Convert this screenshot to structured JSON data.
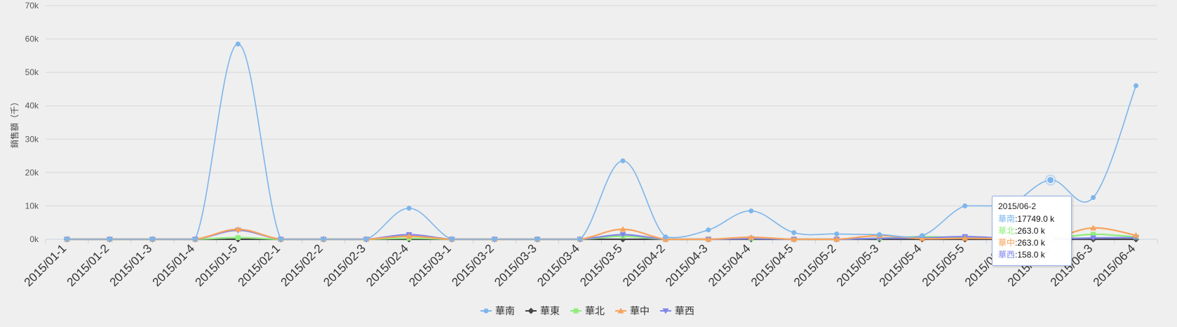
{
  "chart_data": {
    "type": "line",
    "title": "",
    "xlabel": "",
    "ylabel": "銷售額（千）",
    "ylim": [
      0,
      70000
    ],
    "yticks": [
      0,
      10000,
      20000,
      30000,
      40000,
      50000,
      60000,
      70000
    ],
    "ytick_labels": [
      "0k",
      "10k",
      "20k",
      "30k",
      "40k",
      "50k",
      "60k",
      "70k"
    ],
    "grid": "horizontal",
    "legend_position": "bottom-center",
    "categories": [
      "2015/01-1",
      "2015/01-2",
      "2015/01-3",
      "2015/01-4",
      "2015/01-5",
      "2015/02-1",
      "2015/02-2",
      "2015/02-3",
      "2015/02-4",
      "2015/03-1",
      "2015/03-2",
      "2015/03-3",
      "2015/03-4",
      "2015/03-5",
      "2015/04-2",
      "2015/04-3",
      "2015/04-4",
      "2015/04-5",
      "2015/05-2",
      "2015/05-3",
      "2015/05-4",
      "2015/05-5",
      "2015/06-1",
      "2015/06-2",
      "2015/06-3",
      "2015/06-4"
    ],
    "series": [
      {
        "name": "華南",
        "color": "#7cb5ec",
        "marker": "circle",
        "values": [
          0,
          0,
          0,
          0,
          58500,
          0,
          0,
          0,
          9300,
          0,
          0,
          0,
          0,
          23500,
          700,
          2800,
          8500,
          2000,
          1600,
          1400,
          1100,
          10000,
          10000,
          17749,
          12500,
          46000
        ]
      },
      {
        "name": "華東",
        "color": "#434348",
        "marker": "diamond",
        "values": [
          0,
          0,
          0,
          0,
          0,
          0,
          0,
          0,
          0,
          0,
          0,
          0,
          0,
          0,
          0,
          0,
          0,
          0,
          0,
          0,
          0,
          0,
          0,
          0,
          0,
          0
        ]
      },
      {
        "name": "華北",
        "color": "#90ed7d",
        "marker": "square",
        "values": [
          0,
          0,
          0,
          0,
          500,
          0,
          0,
          0,
          300,
          0,
          0,
          0,
          0,
          900,
          0,
          0,
          200,
          0,
          0,
          300,
          800,
          400,
          300,
          263,
          1500,
          700
        ]
      },
      {
        "name": "華中",
        "color": "#f7a35c",
        "marker": "triangle",
        "values": [
          0,
          0,
          0,
          0,
          3000,
          0,
          0,
          0,
          900,
          0,
          0,
          0,
          0,
          3000,
          0,
          0,
          600,
          0,
          0,
          1100,
          200,
          300,
          200,
          263,
          3400,
          1200
        ]
      },
      {
        "name": "華西",
        "color": "#8085e9",
        "marker": "triangle-down",
        "values": [
          0,
          0,
          0,
          0,
          2700,
          0,
          0,
          0,
          1400,
          0,
          0,
          0,
          0,
          1400,
          0,
          0,
          200,
          0,
          0,
          300,
          400,
          800,
          300,
          158,
          400,
          500
        ]
      }
    ],
    "tooltip": {
      "title": "2015/06-2",
      "rows": [
        {
          "name": "華南",
          "value": "17749.0 k",
          "color": "#7cb5ec"
        },
        {
          "name": "華北",
          "value": "263.0 k",
          "color": "#90ed7d"
        },
        {
          "name": "華中",
          "value": "263.0 k",
          "color": "#f7a35c"
        },
        {
          "name": "華西",
          "value": "158.0 k",
          "color": "#8085e9"
        }
      ]
    }
  }
}
